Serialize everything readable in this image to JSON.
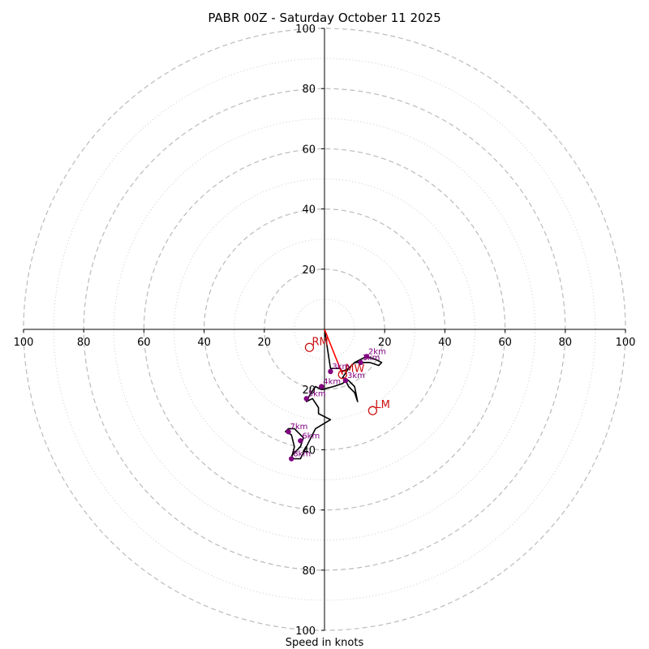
{
  "chart_data": {
    "type": "hodograph",
    "title": "PABR 00Z - Saturday October 11 2025",
    "xlabel": "Speed in knots",
    "ylabel": "",
    "range": [
      -100,
      100
    ],
    "ring_major": [
      20,
      40,
      60,
      80,
      100
    ],
    "ring_minor": [
      10,
      30,
      50,
      70,
      90
    ],
    "axis_tick_labels": [
      "100",
      "80",
      "60",
      "40",
      "20",
      "20",
      "40",
      "60",
      "80",
      "100"
    ],
    "vertical_tick_labels": [
      "100",
      "80",
      "60",
      "40",
      "20",
      "20",
      "40",
      "60",
      "80",
      "100"
    ],
    "trace": [
      [
        0,
        0
      ],
      [
        2,
        -13
      ],
      [
        5,
        -13
      ],
      [
        6,
        -14
      ],
      [
        8,
        -13
      ],
      [
        10,
        -11
      ],
      [
        12,
        -10
      ],
      [
        14,
        -9
      ],
      [
        17,
        -10
      ],
      [
        19,
        -11
      ],
      [
        18,
        -12
      ],
      [
        15,
        -11
      ],
      [
        12,
        -11
      ],
      [
        10,
        -11
      ],
      [
        8,
        -13
      ],
      [
        6,
        -16
      ],
      [
        8,
        -17
      ],
      [
        10,
        -19
      ],
      [
        11,
        -24
      ],
      [
        10,
        -21
      ],
      [
        8,
        -19
      ],
      [
        7,
        -17
      ],
      [
        6,
        -18
      ],
      [
        3,
        -19
      ],
      [
        -1,
        -20
      ],
      [
        -3,
        -19
      ],
      [
        -5,
        -22
      ],
      [
        -6,
        -24
      ],
      [
        -4,
        -23
      ],
      [
        -2,
        -26
      ],
      [
        -2,
        -28
      ],
      [
        2,
        -30
      ],
      [
        -3,
        -33
      ],
      [
        -6,
        -39
      ],
      [
        -8,
        -43
      ],
      [
        -11,
        -43
      ],
      [
        -10,
        -39
      ],
      [
        -11,
        -35
      ],
      [
        -13,
        -34
      ],
      [
        -12,
        -33
      ],
      [
        -10,
        -33
      ],
      [
        -7,
        -36
      ],
      [
        -8,
        -39
      ],
      [
        -11,
        -42
      ]
    ],
    "height_points": [
      {
        "label": "1km",
        "u": 12,
        "v": -11
      },
      {
        "label": "2km",
        "u": 14,
        "v": -9
      },
      {
        "label": "3km",
        "u": 7,
        "v": -17
      },
      {
        "label": "3km",
        "u": 2,
        "v": -14
      },
      {
        "label": "4km",
        "u": -1,
        "v": -19
      },
      {
        "label": "5km",
        "u": -6,
        "v": -23
      },
      {
        "label": "6km",
        "u": -8,
        "v": -37
      },
      {
        "label": "7km",
        "u": -12,
        "v": -34
      },
      {
        "label": "8km",
        "u": -11,
        "v": -43
      }
    ],
    "motion_points": [
      {
        "label": "RM",
        "u": -5,
        "v": -6
      },
      {
        "label": "LM",
        "u": 16,
        "v": -27
      },
      {
        "label": "MW",
        "u": 6,
        "v": -15
      }
    ],
    "shear_vector": {
      "from": [
        0,
        0
      ],
      "to": [
        6,
        -15
      ]
    },
    "colors": {
      "trace": "#000000",
      "height": "#800080",
      "motion": "#cc1010",
      "shear": "#ff0000",
      "ring_major": "#bbbbbb",
      "ring_minor": "#cccccc"
    }
  }
}
